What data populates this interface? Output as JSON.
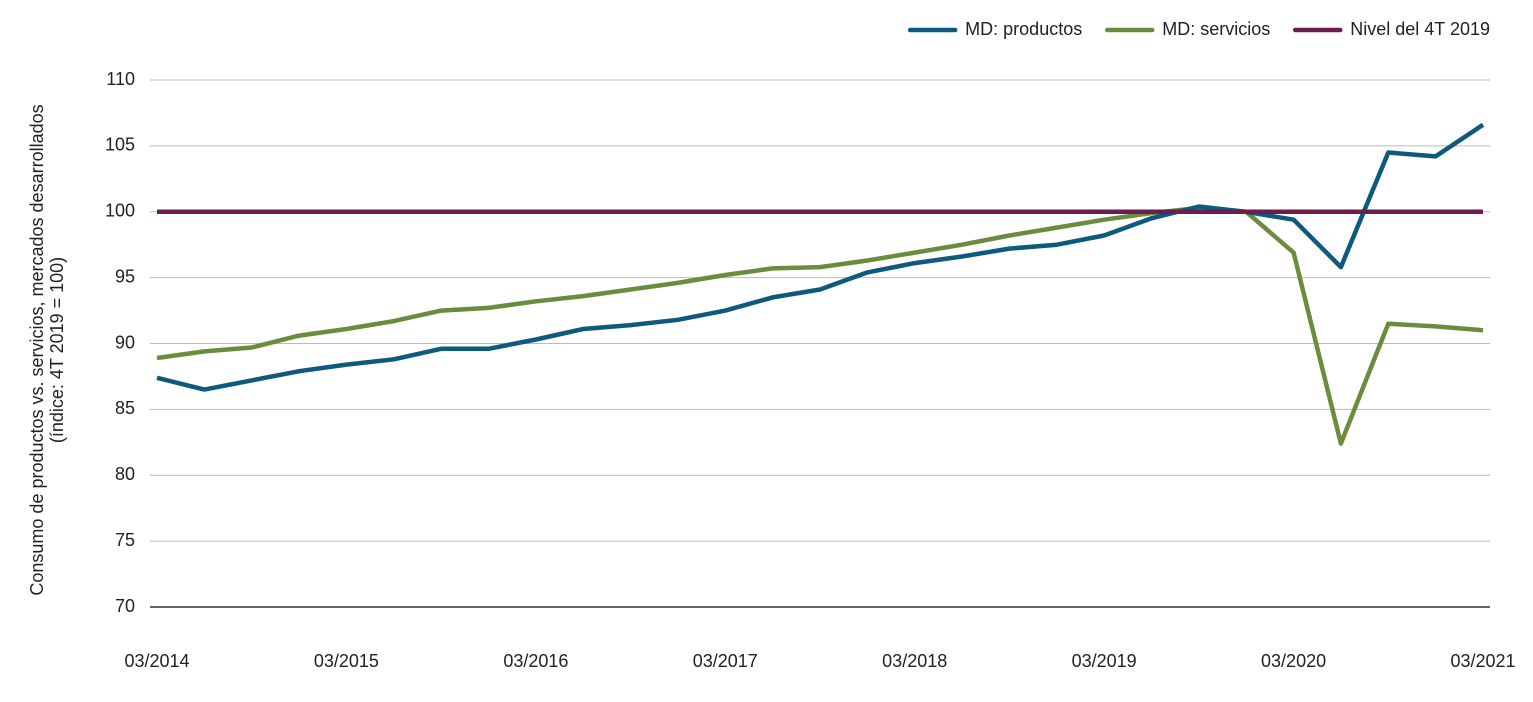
{
  "chart_data": {
    "type": "line",
    "ylabel": [
      "Consumo de productos vs. servicios, mercados desarrollados",
      "(índice: 4T 2019 = 100)"
    ],
    "categories": [
      "03/2014",
      null,
      null,
      null,
      "03/2015",
      null,
      null,
      null,
      "03/2016",
      null,
      null,
      null,
      "03/2017",
      null,
      null,
      null,
      "03/2018",
      null,
      null,
      null,
      "03/2019",
      null,
      null,
      null,
      "03/2020",
      null,
      null,
      null,
      "03/2021"
    ],
    "series": [
      {
        "name": "MD: productos",
        "color": "#0e5a7e",
        "values": [
          87.4,
          86.5,
          87.2,
          87.9,
          88.4,
          88.8,
          89.6,
          89.6,
          90.3,
          91.1,
          91.4,
          91.8,
          92.5,
          93.5,
          94.1,
          95.4,
          96.1,
          96.6,
          97.2,
          97.5,
          98.2,
          99.5,
          100.4,
          100.0,
          99.4,
          95.8,
          104.5,
          104.2,
          106.6
        ]
      },
      {
        "name": "MD: servicios",
        "color": "#6a8c3e",
        "values": [
          88.9,
          89.4,
          89.7,
          90.6,
          91.1,
          91.7,
          92.5,
          92.7,
          93.2,
          93.6,
          94.1,
          94.6,
          95.2,
          95.7,
          95.8,
          96.3,
          96.9,
          97.5,
          98.2,
          98.8,
          99.4,
          99.9,
          100.3,
          100.0,
          96.9,
          82.4,
          91.5,
          91.3,
          91.0
        ]
      },
      {
        "name": "Nivel del 4T 2019",
        "color": "#6b1d4e",
        "values": [
          100,
          100,
          100,
          100,
          100,
          100,
          100,
          100,
          100,
          100,
          100,
          100,
          100,
          100,
          100,
          100,
          100,
          100,
          100,
          100,
          100,
          100,
          100,
          100,
          100,
          100,
          100,
          100,
          100
        ]
      }
    ],
    "ylim": [
      70,
      110
    ],
    "yticks": [
      70,
      75,
      80,
      85,
      90,
      95,
      100,
      105,
      110
    ],
    "grid": true,
    "legend": "top-right"
  }
}
